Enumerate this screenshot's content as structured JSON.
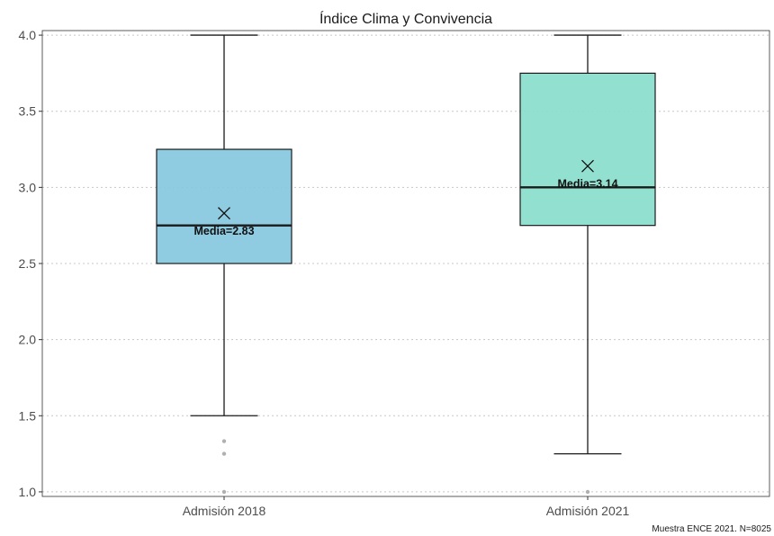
{
  "chart_data": {
    "type": "box",
    "title": "Índice Clima y Convivencia",
    "caption": "Muestra ENCE 2021. N=8025",
    "xlabel": "",
    "ylabel": "",
    "ylim": [
      0.97,
      4.03
    ],
    "y_ticks": [
      1.0,
      1.5,
      2.0,
      2.5,
      3.0,
      3.5,
      4.0
    ],
    "y_tick_labels": [
      "1.0",
      "1.5",
      "2.0",
      "2.5",
      "3.0",
      "3.5",
      "4.0"
    ],
    "grid": "major horizontal dotted",
    "categories": [
      "Admisión 2018",
      "Admisión 2021"
    ],
    "boxes": [
      {
        "category": "Admisión 2018",
        "whisker_low": 1.5,
        "q1": 2.5,
        "median": 2.75,
        "q3": 3.25,
        "whisker_high": 4.0,
        "mean": 2.83,
        "mean_label": "Media=2.83",
        "outliers": [
          1.0,
          1.25,
          1.333
        ],
        "color": "#86c8df"
      },
      {
        "category": "Admisión 2021",
        "whisker_low": 1.25,
        "q1": 2.75,
        "median": 3.0,
        "q3": 3.75,
        "whisker_high": 4.0,
        "mean": 3.14,
        "mean_label": "Media=3.14",
        "outliers": [
          1.0
        ],
        "color": "#8adfcc"
      }
    ]
  }
}
